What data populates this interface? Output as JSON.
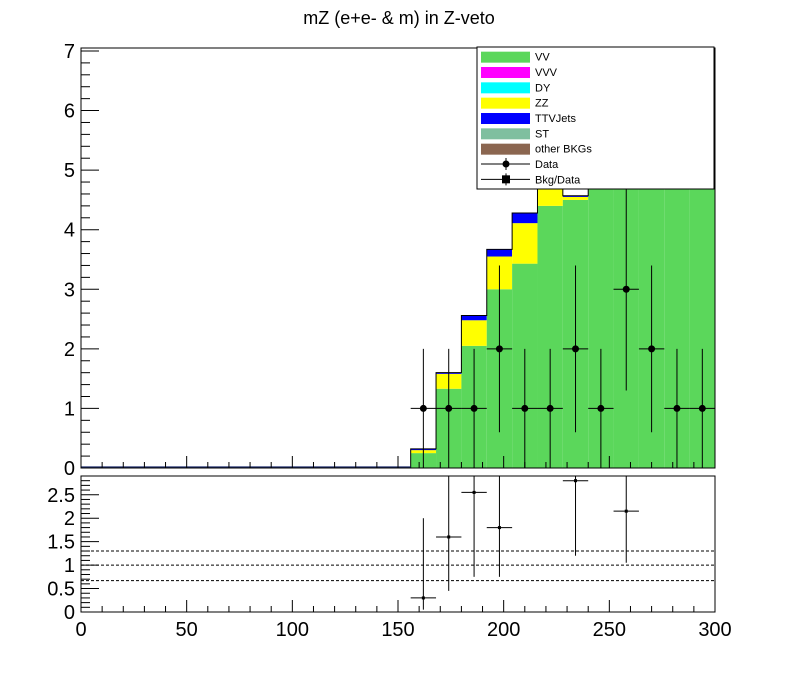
{
  "chart_data": {
    "type": "bar",
    "title": "mZ (e+e- & m) in Z-veto",
    "xlim": [
      0,
      300
    ],
    "bin_width": 12,
    "main_panel": {
      "ylim": [
        0,
        7.05
      ],
      "y_ticks": [
        "0",
        "1",
        "2",
        "3",
        "4",
        "5",
        "6",
        "7"
      ],
      "stack_bins_x": [
        156,
        168,
        180,
        192,
        204,
        216,
        228,
        240,
        252,
        264,
        276,
        288
      ],
      "stacked_series": [
        {
          "name": "VV",
          "color": "#5bd75b",
          "values": [
            0.25,
            1.33,
            2.05,
            3.0,
            3.43,
            4.4,
            4.5,
            4.7,
            4.7,
            4.7,
            4.7,
            4.7
          ]
        },
        {
          "name": "VVV",
          "color": "#ff00ff",
          "values": [
            0,
            0,
            0,
            0,
            0,
            0,
            0,
            0,
            0,
            0,
            0,
            0
          ]
        },
        {
          "name": "DY",
          "color": "#00ffff",
          "values": [
            0,
            0,
            0,
            0,
            0,
            0,
            0,
            0,
            0,
            0,
            0,
            0
          ]
        },
        {
          "name": "ZZ",
          "color": "#ffff00",
          "values": [
            0.05,
            0.25,
            0.43,
            0.55,
            0.68,
            0.35,
            0.05,
            0,
            0,
            0,
            0,
            0
          ]
        },
        {
          "name": "TTVJets",
          "color": "#0000ff",
          "values": [
            0.02,
            0.02,
            0.08,
            0.12,
            0.17,
            0.05,
            0.02,
            0,
            0,
            0,
            0,
            0
          ]
        },
        {
          "name": "ST",
          "color": "#7fbf9f",
          "values": [
            0,
            0,
            0,
            0,
            0,
            0,
            0,
            0,
            0,
            0,
            0,
            0
          ]
        },
        {
          "name": "other BKGs",
          "color": "#8b6650",
          "values": [
            0,
            0,
            0,
            0,
            0,
            0,
            0,
            0,
            0,
            0,
            0,
            0
          ]
        }
      ],
      "background_line": {
        "x_range": [
          0,
          156
        ],
        "value": 0.01
      },
      "data_points": {
        "name": "Data",
        "x": [
          162,
          174,
          186,
          198,
          210,
          222,
          234,
          246,
          258,
          270,
          282,
          294
        ],
        "y": [
          1,
          1,
          1,
          2,
          1,
          1,
          2,
          1,
          3,
          2,
          1,
          1
        ],
        "err_low": [
          1,
          1,
          1,
          1.4,
          1,
          1,
          1.4,
          1,
          1.7,
          1.4,
          1,
          1
        ],
        "err_high": [
          1,
          1,
          1,
          1.4,
          1,
          1,
          1.4,
          1,
          1.7,
          1.4,
          1,
          1
        ]
      }
    },
    "ratio_panel": {
      "ylim": [
        0,
        2.9
      ],
      "y_ticks": [
        "0",
        "0.5",
        "1",
        "1.5",
        "2",
        "2.5"
      ],
      "ref_lines": [
        0.67,
        1.0,
        1.3
      ],
      "points": {
        "name": "Bkg/Data",
        "x": [
          162,
          174,
          186,
          198,
          234,
          258
        ],
        "y": [
          0.3,
          1.6,
          2.55,
          1.8,
          2.8,
          2.15
        ],
        "err_low": [
          0.25,
          1.15,
          1.8,
          1.05,
          1.6,
          1.1
        ],
        "err_high": [
          1.7,
          1.3,
          0.35,
          1.1,
          0.1,
          0.75
        ]
      }
    },
    "x_ticks": [
      "0",
      "50",
      "100",
      "150",
      "200",
      "250",
      "300"
    ],
    "legend": {
      "position": "top-right",
      "entries": [
        {
          "label": "VV",
          "kind": "fill",
          "color": "#5bd75b"
        },
        {
          "label": "VVV",
          "kind": "fill",
          "color": "#ff00ff"
        },
        {
          "label": "DY",
          "kind": "fill",
          "color": "#00ffff"
        },
        {
          "label": "ZZ",
          "kind": "fill",
          "color": "#ffff00"
        },
        {
          "label": "TTVJets",
          "kind": "fill",
          "color": "#0000ff"
        },
        {
          "label": "ST",
          "kind": "fill",
          "color": "#7fbf9f"
        },
        {
          "label": "other BKGs",
          "kind": "fill",
          "color": "#8b6650"
        },
        {
          "label": "Data",
          "kind": "marker-circle",
          "color": "#000000"
        },
        {
          "label": "Bkg/Data",
          "kind": "marker-square",
          "color": "#000000"
        }
      ]
    }
  }
}
